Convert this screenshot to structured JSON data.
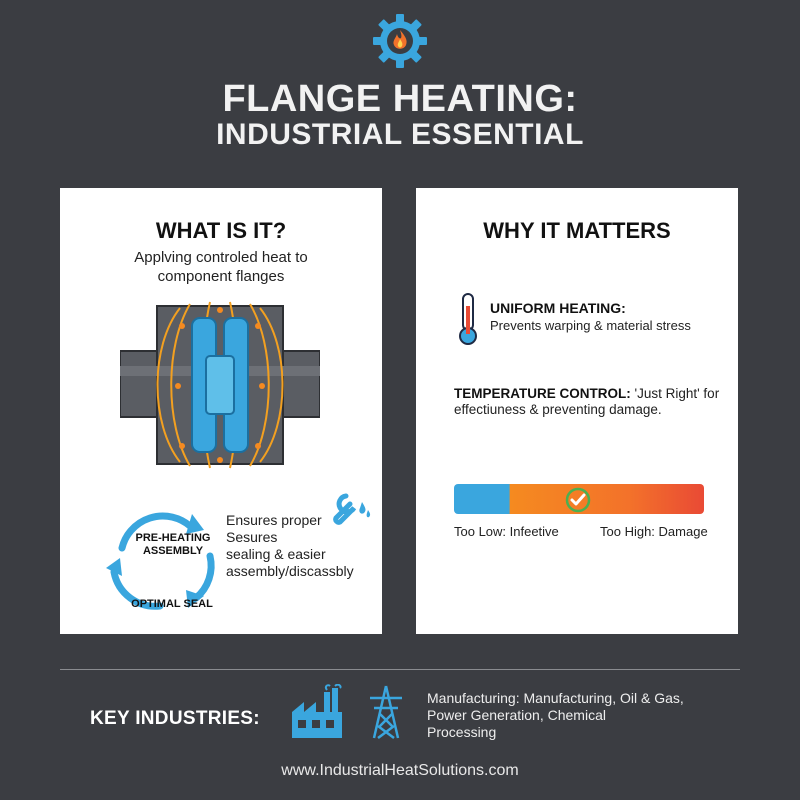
{
  "header": {
    "title_line1": "FLANGE HEATING:",
    "title_line2": "INDUSTRIAL ESSENTIAL",
    "logo_icon": "gear-flame-icon"
  },
  "what_is_it": {
    "heading": "WHAT IS IT?",
    "description_line1": "Applving controled heat to",
    "description_line2": "component flanges",
    "cycle": {
      "top_label_line1": "PRE-HEATING",
      "top_label_line2": "ASSEMBLY",
      "bottom_label": "OPTIMAL SEAL"
    },
    "ensures_lines": [
      "Ensures proper",
      "Sesures",
      "sealing & easier",
      "assembly/discassbly"
    ]
  },
  "why_it_matters": {
    "heading": "WHY IT MATTERS",
    "uniform_title": "UNIFORM HEATING:",
    "uniform_desc": "Prevents warping & material stress",
    "temp_title": "TEMPERATURE CONTROL:",
    "temp_desc_line1_rest": " 'Just Right' for",
    "temp_desc_line2": "effectiuness & preventing damage.",
    "bar_low_label": "Too Low: Infeetive",
    "bar_high_label": "Too High: Damage"
  },
  "industries": {
    "label": "KEY INDUSTRIES:",
    "text_line1": "Manufacturing: Manufacturing, Oil & Gas,",
    "text_line2": "Power Generation, Chemical",
    "text_line3": "Processing"
  },
  "footer": {
    "url": "www.IndustrialHeatSolutions.com"
  },
  "colors": {
    "background": "#3b3d42",
    "accent_blue": "#3aa6de",
    "accent_orange": "#f58a20",
    "accent_red": "#e94a35",
    "check_green": "#4caf50"
  }
}
